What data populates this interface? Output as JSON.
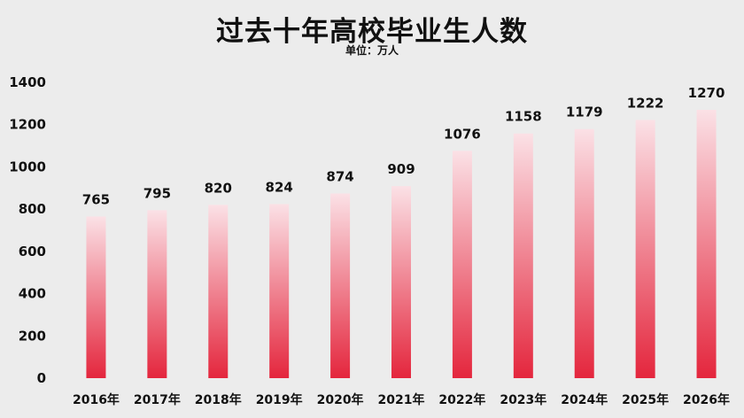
{
  "chart_data": {
    "type": "bar",
    "title": "过去十年高校毕业生人数",
    "subtitle": "单位：万人",
    "categories": [
      "2016年",
      "2017年",
      "2018年",
      "2019年",
      "2020年",
      "2021年",
      "2022年",
      "2023年",
      "2024年",
      "2025年",
      "2026年"
    ],
    "values": [
      765,
      795,
      820,
      824,
      874,
      909,
      1076,
      1158,
      1179,
      1222,
      1270
    ],
    "ylim": [
      0,
      1400
    ],
    "yticks": [
      0,
      200,
      400,
      600,
      800,
      1000,
      1200,
      1400
    ],
    "grid": false,
    "colors": {
      "bar_top": "#fbe1e6",
      "bar_bottom": "#e4263d",
      "background": "#ececec"
    }
  }
}
